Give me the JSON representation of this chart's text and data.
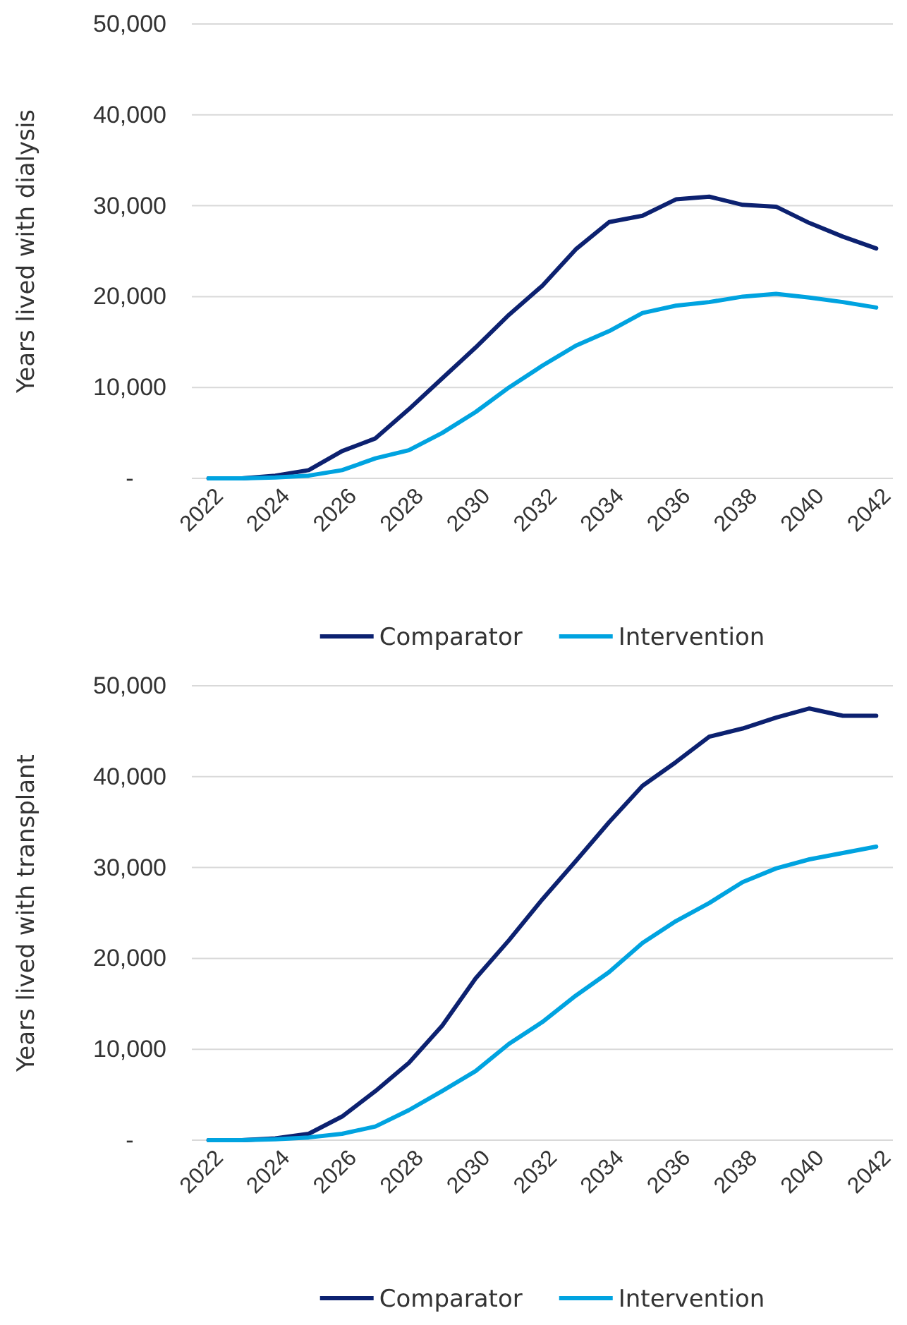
{
  "chart_data": [
    {
      "type": "line",
      "ylabel": "Years lived with dialysis",
      "categories": [
        "2022",
        null,
        "2024",
        null,
        "2026",
        null,
        "2028",
        null,
        "2030",
        null,
        "2032",
        null,
        "2034",
        null,
        "2036",
        null,
        "2038",
        null,
        "2040",
        null,
        "2042"
      ],
      "ylim": [
        0,
        50000
      ],
      "yticks": [
        {
          "value": 0,
          "label": "-"
        },
        {
          "value": 10000,
          "label": "10,000"
        },
        {
          "value": 20000,
          "label": "20,000"
        },
        {
          "value": 30000,
          "label": "30,000"
        },
        {
          "value": 40000,
          "label": "40,000"
        },
        {
          "value": 50000,
          "label": "50,000"
        }
      ],
      "grid": "y",
      "legend": "bottom",
      "line_style": "solid",
      "marker": "none",
      "series": [
        {
          "name": "Comparator",
          "color": "#0c2170",
          "values": [
            0,
            0,
            300,
            900,
            3000,
            4400,
            7600,
            11000,
            14400,
            18000,
            21200,
            25200,
            28200,
            28900,
            30700,
            31000,
            30100,
            29900,
            28100,
            26600,
            25300
          ]
        },
        {
          "name": "Intervention",
          "color": "#00a3e0",
          "values": [
            0,
            0,
            100,
            300,
            900,
            2200,
            3100,
            5000,
            7300,
            10000,
            12400,
            14600,
            16200,
            18200,
            19000,
            19400,
            20000,
            20300,
            19900,
            19400,
            18800
          ]
        }
      ]
    },
    {
      "type": "line",
      "ylabel": "Years lived with transplant",
      "categories": [
        "2022",
        null,
        "2024",
        null,
        "2026",
        null,
        "2028",
        null,
        "2030",
        null,
        "2032",
        null,
        "2034",
        null,
        "2036",
        null,
        "2038",
        null,
        "2040",
        null,
        "2042"
      ],
      "ylim": [
        0,
        50000
      ],
      "yticks": [
        {
          "value": 0,
          "label": "-"
        },
        {
          "value": 10000,
          "label": "10,000"
        },
        {
          "value": 20000,
          "label": "20,000"
        },
        {
          "value": 30000,
          "label": "30,000"
        },
        {
          "value": 40000,
          "label": "40,000"
        },
        {
          "value": 50000,
          "label": "50,000"
        }
      ],
      "grid": "y",
      "legend": "bottom",
      "line_style": "solid",
      "marker": "none",
      "series": [
        {
          "name": "Comparator",
          "color": "#0c2170",
          "values": [
            0,
            0,
            200,
            700,
            2600,
            5400,
            8500,
            12600,
            17800,
            22000,
            26500,
            30700,
            35000,
            39000,
            41600,
            44400,
            45300,
            46500,
            47500,
            46700,
            46700
          ]
        },
        {
          "name": "Intervention",
          "color": "#00a3e0",
          "values": [
            0,
            0,
            100,
            300,
            700,
            1500,
            3300,
            5400,
            7600,
            10600,
            13000,
            15900,
            18500,
            21700,
            24100,
            26100,
            28400,
            29900,
            30900,
            31600,
            32300
          ]
        }
      ]
    }
  ]
}
